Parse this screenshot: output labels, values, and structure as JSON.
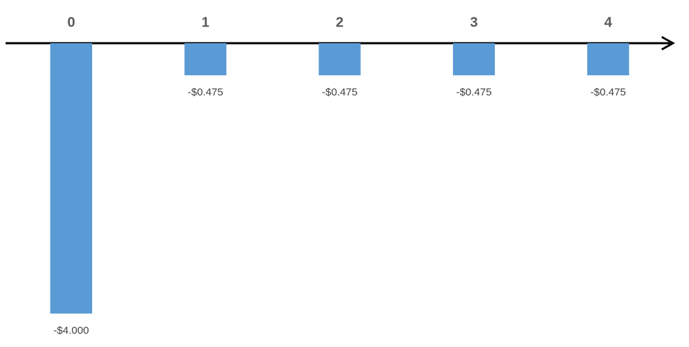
{
  "chart_data": {
    "type": "bar",
    "categories": [
      "0",
      "1",
      "2",
      "3",
      "4"
    ],
    "values": [
      -4,
      -0.475,
      -0.475,
      -0.475,
      -0.475
    ],
    "value_labels": [
      "-$4.000",
      "-$0.475",
      "-$0.475",
      "-$0.475",
      "-$0.475"
    ],
    "color": "#5b9bd5"
  }
}
